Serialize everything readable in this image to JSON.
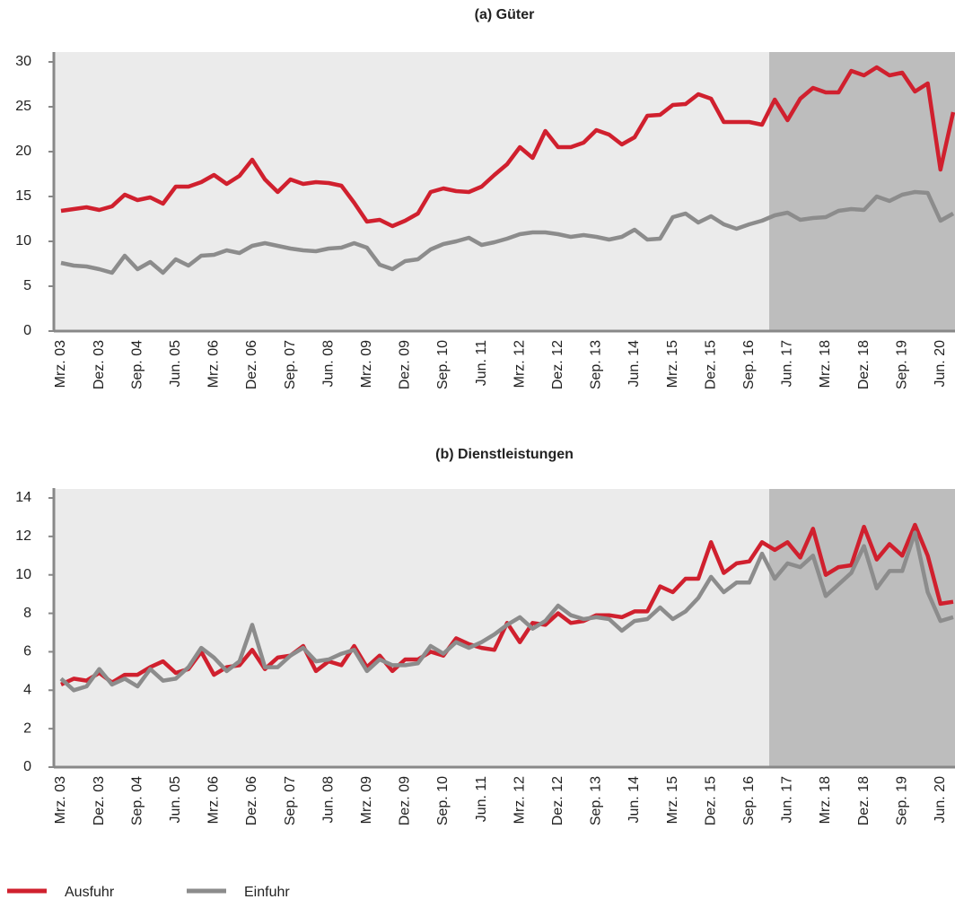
{
  "chart_data": [
    {
      "type": "line",
      "title": "(a) Güter",
      "categories": [
        "Mrz. 03",
        null,
        null,
        "Dez. 03",
        null,
        null,
        "Sep. 04",
        null,
        null,
        "Jun. 05",
        null,
        null,
        "Mrz. 06",
        null,
        null,
        "Dez. 06",
        null,
        null,
        "Sep. 07",
        null,
        null,
        "Jun. 08",
        null,
        null,
        "Mrz. 09",
        null,
        null,
        "Dez. 09",
        null,
        null,
        "Sep. 10",
        null,
        null,
        "Jun. 11",
        null,
        null,
        "Mrz. 12",
        null,
        null,
        "Dez. 12",
        null,
        null,
        "Sep. 13",
        null,
        null,
        "Jun. 14",
        null,
        null,
        "Mrz. 15",
        null,
        null,
        "Dez. 15",
        null,
        null,
        "Sep. 16",
        null,
        null,
        "Jun. 17",
        null,
        null,
        "Mrz. 18",
        null,
        null,
        "Dez. 18",
        null,
        null,
        "Sep. 19",
        null,
        null,
        "Jun. 20",
        null
      ],
      "series": [
        {
          "name": "Ausfuhr",
          "color": "#d0202e",
          "values": [
            13.4,
            13.6,
            13.8,
            13.5,
            13.9,
            15.2,
            14.6,
            14.9,
            14.2,
            16.1,
            16.1,
            16.6,
            17.4,
            16.4,
            17.3,
            19.1,
            16.9,
            15.5,
            16.9,
            16.4,
            16.6,
            16.5,
            16.2,
            14.3,
            12.2,
            12.4,
            11.7,
            12.3,
            13.1,
            15.5,
            15.9,
            15.6,
            15.5,
            16.1,
            17.4,
            18.6,
            20.5,
            19.3,
            22.3,
            20.5,
            20.5,
            21.0,
            22.4,
            21.9,
            20.8,
            21.6,
            24.0,
            24.1,
            25.2,
            25.3,
            26.4,
            25.9,
            23.3,
            23.3,
            23.3,
            23.0,
            25.8,
            23.5,
            25.9,
            27.1,
            26.6,
            26.6,
            29.0,
            28.5,
            29.4,
            28.5,
            28.8,
            26.7,
            27.6,
            18.0,
            24.4
          ]
        },
        {
          "name": "Einfuhr",
          "color": "#8c8c8c",
          "values": [
            7.6,
            7.3,
            7.2,
            6.9,
            6.5,
            8.4,
            6.9,
            7.7,
            6.5,
            8.0,
            7.3,
            8.4,
            8.5,
            9.0,
            8.7,
            9.5,
            9.8,
            9.5,
            9.2,
            9.0,
            8.9,
            9.2,
            9.3,
            9.8,
            9.3,
            7.4,
            6.9,
            7.8,
            8.0,
            9.1,
            9.7,
            10.0,
            10.4,
            9.6,
            9.9,
            10.3,
            10.8,
            11.0,
            11.0,
            10.8,
            10.5,
            10.7,
            10.5,
            10.2,
            10.5,
            11.3,
            10.2,
            10.3,
            12.7,
            13.1,
            12.1,
            12.8,
            11.9,
            11.4,
            11.9,
            12.3,
            12.9,
            13.2,
            12.4,
            12.6,
            12.7,
            13.4,
            13.6,
            13.5,
            15.0,
            14.5,
            15.2,
            15.5,
            15.4,
            12.3,
            13.1
          ]
        }
      ],
      "ylim": [
        0,
        30
      ],
      "yticks": [
        0,
        5,
        10,
        15,
        20,
        25,
        30
      ]
    },
    {
      "type": "line",
      "title": "(b) Dienstleistungen",
      "categories": [
        "Mrz. 03",
        null,
        null,
        "Dez. 03",
        null,
        null,
        "Sep. 04",
        null,
        null,
        "Jun. 05",
        null,
        null,
        "Mrz. 06",
        null,
        null,
        "Dez. 06",
        null,
        null,
        "Sep. 07",
        null,
        null,
        "Jun. 08",
        null,
        null,
        "Mrz. 09",
        null,
        null,
        "Dez. 09",
        null,
        null,
        "Sep. 10",
        null,
        null,
        "Jun. 11",
        null,
        null,
        "Mrz. 12",
        null,
        null,
        "Dez. 12",
        null,
        null,
        "Sep. 13",
        null,
        null,
        "Jun. 14",
        null,
        null,
        "Mrz. 15",
        null,
        null,
        "Dez. 15",
        null,
        null,
        "Sep. 16",
        null,
        null,
        "Jun. 17",
        null,
        null,
        "Mrz. 18",
        null,
        null,
        "Dez. 18",
        null,
        null,
        "Sep. 19",
        null,
        null,
        "Jun. 20",
        null
      ],
      "series": [
        {
          "color": "#d0202e",
          "values": [
            4.3,
            4.6,
            4.5,
            4.9,
            4.4,
            4.8,
            4.8,
            5.2,
            5.5,
            4.9,
            5.1,
            6.0,
            4.8,
            5.2,
            5.3,
            6.1,
            5.1,
            5.7,
            5.8,
            6.3,
            5.0,
            5.5,
            5.3,
            6.3,
            5.2,
            5.8,
            5.0,
            5.6,
            5.6,
            6.0,
            5.8,
            6.7,
            6.4,
            6.2,
            6.1,
            7.5,
            6.5,
            7.5,
            7.4,
            8.0,
            7.5,
            7.6,
            7.9,
            7.9,
            7.8,
            8.1,
            8.1,
            9.4,
            9.1,
            9.8,
            9.8,
            11.7,
            10.1,
            10.6,
            10.7,
            11.7,
            11.3,
            11.7,
            10.9,
            12.4,
            10.0,
            10.4,
            10.5,
            12.5,
            10.8,
            11.6,
            11.0,
            12.6,
            11.0,
            8.5,
            8.6
          ]
        },
        {
          "color": "#8c8c8c",
          "values": [
            4.6,
            4.0,
            4.2,
            5.1,
            4.3,
            4.6,
            4.2,
            5.1,
            4.5,
            4.6,
            5.2,
            6.2,
            5.7,
            5.0,
            5.5,
            7.4,
            5.2,
            5.2,
            5.8,
            6.2,
            5.5,
            5.6,
            5.9,
            6.1,
            5.0,
            5.6,
            5.3,
            5.3,
            5.4,
            6.3,
            5.9,
            6.5,
            6.2,
            6.5,
            6.9,
            7.4,
            7.8,
            7.2,
            7.6,
            8.4,
            7.9,
            7.7,
            7.8,
            7.7,
            7.1,
            7.6,
            7.7,
            8.3,
            7.7,
            8.1,
            8.8,
            9.9,
            9.1,
            9.6,
            9.6,
            11.1,
            9.8,
            10.6,
            10.4,
            11.0,
            8.9,
            9.5,
            10.1,
            11.5,
            9.3,
            10.2,
            10.2,
            12.2,
            9.1,
            7.6,
            7.8
          ]
        }
      ],
      "ylim": [
        0,
        14
      ],
      "yticks": [
        0,
        2,
        4,
        6,
        8,
        10,
        12,
        14
      ]
    }
  ]
}
